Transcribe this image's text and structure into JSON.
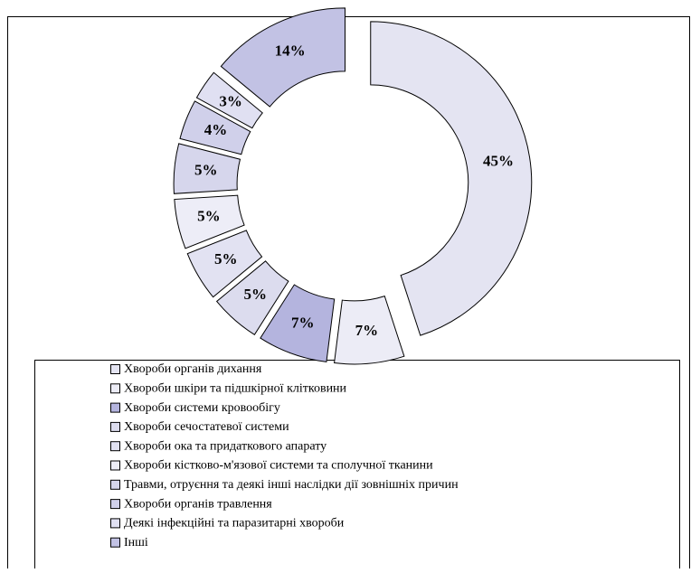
{
  "chart_data": {
    "type": "donut",
    "categories": [
      "Хвороби органів дихання",
      "Хвороби шкіри та підшкірної клітковини",
      "Хвороби системи кровообігу",
      "Хвороби сечостатевої системи",
      "Хвороби ока та придаткового апарату",
      "Хвороби кістково-м'язової системи та сполучної тканини",
      "Травми, отруєння та деякі інші наслідки дії  зовнішніх причин",
      "Хвороби органів травлення",
      "Деякі інфекційні та паразитарні хвороби",
      "Інші"
    ],
    "values": [
      45,
      7,
      7,
      5,
      5,
      5,
      5,
      4,
      3,
      14
    ],
    "value_labels": [
      "45%",
      "7%",
      "7%",
      "5%",
      "5%",
      "5%",
      "5%",
      "4%",
      "3%",
      "14%"
    ],
    "colors": [
      "#e4e4f2",
      "#ececf6",
      "#b4b4de",
      "#dcdcee",
      "#e2e2f2",
      "#ededf7",
      "#d6d6ec",
      "#d0d0ea",
      "#e0e0f2",
      "#c2c2e4"
    ]
  }
}
